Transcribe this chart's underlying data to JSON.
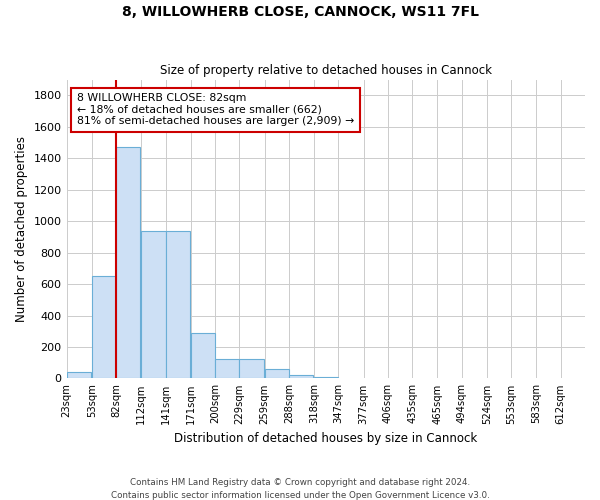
{
  "title": "8, WILLOWHERB CLOSE, CANNOCK, WS11 7FL",
  "subtitle": "Size of property relative to detached houses in Cannock",
  "xlabel": "Distribution of detached houses by size in Cannock",
  "ylabel": "Number of detached properties",
  "footer_line1": "Contains HM Land Registry data © Crown copyright and database right 2024.",
  "footer_line2": "Contains public sector information licensed under the Open Government Licence v3.0.",
  "annotation_line1": "8 WILLOWHERB CLOSE: 82sqm",
  "annotation_line2": "← 18% of detached houses are smaller (662)",
  "annotation_line3": "81% of semi-detached houses are larger (2,909) →",
  "property_size": 82,
  "bar_color": "#cde0f5",
  "bar_edge_color": "#6aaed6",
  "redline_color": "#cc0000",
  "grid_color": "#cccccc",
  "background_color": "#ffffff",
  "categories": [
    "23sqm",
    "53sqm",
    "82sqm",
    "112sqm",
    "141sqm",
    "171sqm",
    "200sqm",
    "229sqm",
    "259sqm",
    "288sqm",
    "318sqm",
    "347sqm",
    "377sqm",
    "406sqm",
    "435sqm",
    "465sqm",
    "494sqm",
    "524sqm",
    "553sqm",
    "583sqm",
    "612sqm"
  ],
  "bin_edges": [
    23,
    53,
    82,
    112,
    141,
    171,
    200,
    229,
    259,
    288,
    318,
    347,
    377,
    406,
    435,
    465,
    494,
    524,
    553,
    583,
    612
  ],
  "bin_width": 29,
  "values": [
    38,
    650,
    1470,
    935,
    935,
    290,
    125,
    125,
    60,
    22,
    10,
    0,
    0,
    0,
    0,
    0,
    0,
    0,
    0,
    0,
    0
  ],
  "ylim": [
    0,
    1900
  ],
  "yticks": [
    0,
    200,
    400,
    600,
    800,
    1000,
    1200,
    1400,
    1600,
    1800
  ]
}
